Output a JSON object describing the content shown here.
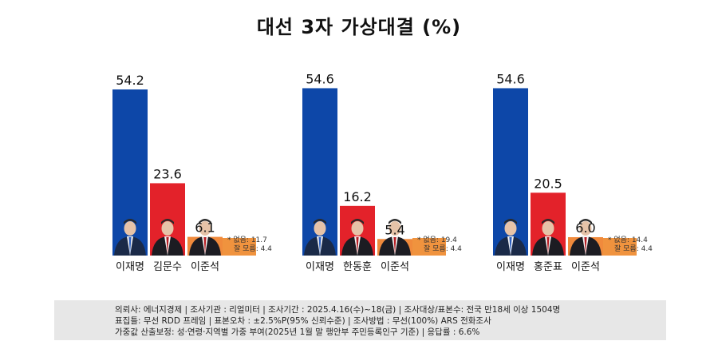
{
  "title": "대선  3자 가상대결 (%)",
  "colors": {
    "lee_jaemyung": "#0d47a8",
    "ppp": "#e3222a",
    "lee_junseok": "#f08a3c",
    "other_bar": "#f0933e"
  },
  "chart_data": [
    {
      "type": "bar",
      "categories": [
        "이재명",
        "김문수",
        "이준석"
      ],
      "values": [
        54.2,
        23.6,
        6.1
      ],
      "note_lines": [
        "* 없음: 11.7",
        "잘 모름: 4.4"
      ],
      "ylim": [
        0,
        60
      ]
    },
    {
      "type": "bar",
      "categories": [
        "이재명",
        "한동훈",
        "이준석"
      ],
      "values": [
        54.6,
        16.2,
        5.4
      ],
      "note_lines": [
        "* 없음: 19.4",
        "잘 모름: 4.4"
      ],
      "ylim": [
        0,
        60
      ]
    },
    {
      "type": "bar",
      "categories": [
        "이재명",
        "홍준표",
        "이준석"
      ],
      "values": [
        54.6,
        20.5,
        6.0
      ],
      "note_lines": [
        "* 없음: 14.4",
        "잘 모름: 4.4"
      ],
      "ylim": [
        0,
        60
      ]
    }
  ],
  "footer": {
    "line1": "의뢰사: 에너지경제 | 조사기관 : 리얼미터  |  조사기간 : 2025.4.16(수)~18(금) | 조사대상/표본수: 전국 만18세 이상 1504명",
    "line2": "표집틀: 무선 RDD 프레임 | 표본오차 : ±2.5%P(95% 신뢰수준) | 조사방법 : 무선(100%) ARS 전화조사",
    "line3": "가중값 산출보정: 성·연령·지역별 가중 부여(2025년 1월 말 행안부 주민등록인구 기준) | 응답률 : 6.6%"
  }
}
